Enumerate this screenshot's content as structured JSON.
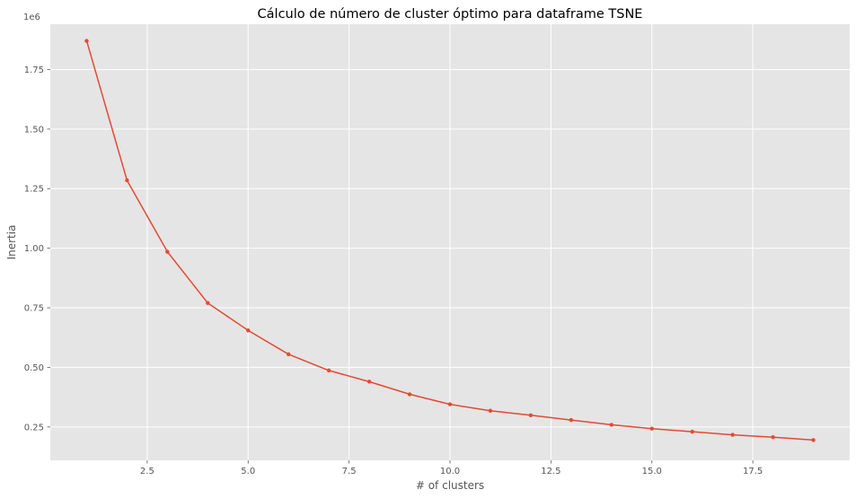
{
  "chart_data": {
    "type": "line",
    "title": "Cálculo de número de cluster óptimo para dataframe TSNE",
    "xlabel": "# of clusters",
    "ylabel": "Inertia",
    "y_offset_label": "1e6",
    "xlim": [
      0.1,
      19.9
    ],
    "ylim": [
      0.11,
      1.94
    ],
    "x_ticks": [
      2.5,
      5.0,
      7.5,
      10.0,
      12.5,
      15.0,
      17.5
    ],
    "x_tick_labels": [
      "2.5",
      "5.0",
      "7.5",
      "10.0",
      "12.5",
      "15.0",
      "17.5"
    ],
    "y_ticks": [
      0.25,
      0.5,
      0.75,
      1.0,
      1.25,
      1.5,
      1.75
    ],
    "y_tick_labels": [
      "0.25",
      "0.50",
      "0.75",
      "1.00",
      "1.25",
      "1.50",
      "1.75"
    ],
    "grid": true,
    "style": "ggplot",
    "colors": {
      "background": "#e5e5e5",
      "grid": "#ffffff",
      "line": "#e24a33"
    },
    "series": [
      {
        "x": [
          1,
          2,
          3,
          4,
          5,
          6,
          7,
          8,
          9,
          10,
          11,
          12,
          13,
          14,
          15,
          16,
          17,
          18,
          19
        ],
        "values": [
          1.87,
          1.285,
          0.985,
          0.77,
          0.655,
          0.555,
          0.487,
          0.44,
          0.387,
          0.345,
          0.318,
          0.299,
          0.279,
          0.259,
          0.243,
          0.23,
          0.217,
          0.207,
          0.195
        ]
      }
    ]
  }
}
